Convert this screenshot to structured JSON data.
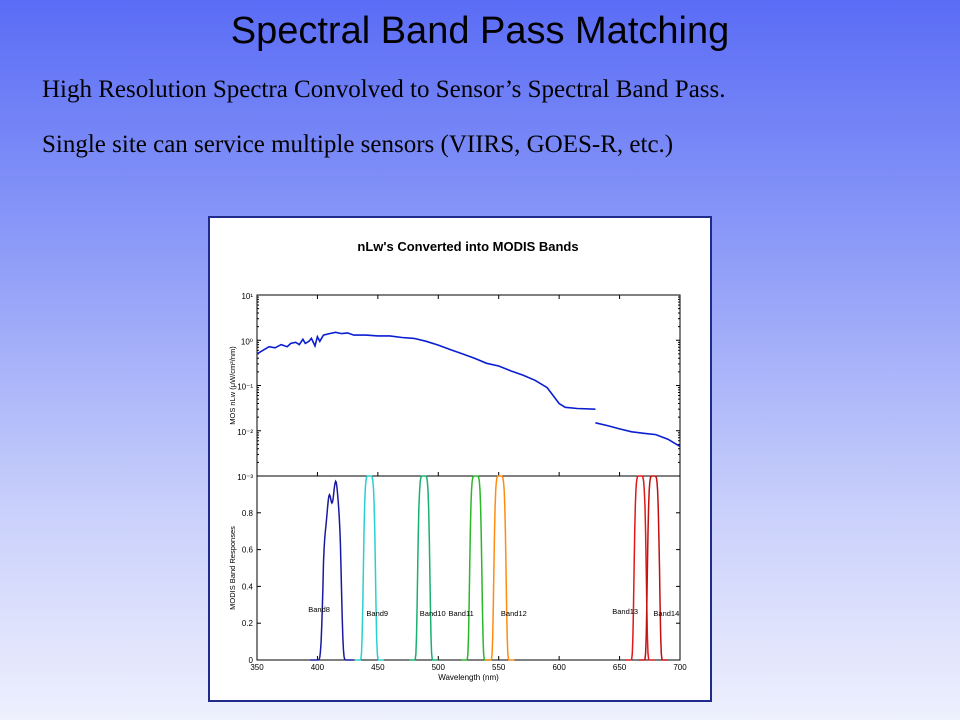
{
  "slide": {
    "title": "Spectral Band Pass Matching",
    "bullets": [
      "High Resolution Spectra Convolved to Sensor’s Spectral Band Pass.",
      "Single site can service multiple sensors  (VIIRS, GOES-R, etc.)"
    ]
  },
  "chart_data": [
    {
      "type": "line",
      "title": "nLw's Converted into MODIS Bands",
      "ylabel": "MOS nLw (μW/cm²/nm)",
      "xlim": [
        350,
        700
      ],
      "yscale": "log",
      "ylim": [
        0.001,
        10
      ],
      "ytick_labels": [
        "10⁻³",
        "10⁻²",
        "10⁻¹",
        "10⁰",
        "10¹"
      ],
      "series": [
        {
          "color": "#0a1ed0",
          "segments": [
            [
              [
                350,
                0.5
              ],
              [
                355,
                0.6
              ],
              [
                360,
                0.72
              ],
              [
                365,
                0.68
              ],
              [
                370,
                0.8
              ],
              [
                375,
                0.72
              ],
              [
                378,
                0.85
              ],
              [
                382,
                0.9
              ],
              [
                385,
                0.8
              ],
              [
                388,
                1.05
              ],
              [
                390,
                0.85
              ],
              [
                393,
                0.95
              ],
              [
                395,
                1.1
              ],
              [
                398,
                0.75
              ],
              [
                400,
                1.2
              ],
              [
                402,
                0.95
              ],
              [
                405,
                1.3
              ],
              [
                410,
                1.4
              ],
              [
                415,
                1.5
              ],
              [
                420,
                1.4
              ],
              [
                425,
                1.45
              ],
              [
                430,
                1.3
              ],
              [
                440,
                1.3
              ],
              [
                450,
                1.25
              ],
              [
                460,
                1.25
              ],
              [
                470,
                1.15
              ],
              [
                480,
                1.1
              ],
              [
                490,
                0.95
              ],
              [
                500,
                0.78
              ],
              [
                510,
                0.62
              ],
              [
                520,
                0.5
              ],
              [
                530,
                0.4
              ],
              [
                540,
                0.31
              ],
              [
                550,
                0.27
              ],
              [
                560,
                0.21
              ],
              [
                570,
                0.17
              ],
              [
                580,
                0.13
              ],
              [
                590,
                0.09
              ],
              [
                595,
                0.06
              ],
              [
                600,
                0.04
              ],
              [
                605,
                0.033
              ],
              [
                615,
                0.031
              ],
              [
                630,
                0.03
              ]
            ],
            [
              [
                630,
                0.015
              ],
              [
                640,
                0.013
              ],
              [
                650,
                0.011
              ],
              [
                660,
                0.0095
              ],
              [
                670,
                0.0088
              ],
              [
                680,
                0.0082
              ],
              [
                690,
                0.0065
              ],
              [
                700,
                0.0045
              ]
            ]
          ]
        }
      ]
    },
    {
      "type": "line",
      "xlabel": "Wavelength  (nm)",
      "ylabel": "MODIS Band Responses",
      "xlim": [
        350,
        700
      ],
      "ylim": [
        0,
        1
      ],
      "xticks": [
        350,
        400,
        450,
        500,
        550,
        600,
        650,
        700
      ],
      "yticks": [
        0,
        0.2,
        0.4,
        0.6,
        0.8
      ],
      "bands": [
        {
          "name": "Band8",
          "center": 412,
          "width": 15,
          "color": "#1a1aa0"
        },
        {
          "name": "Band9",
          "center": 443,
          "width": 10,
          "color": "#2ad0d0"
        },
        {
          "name": "Band10",
          "center": 488,
          "width": 10,
          "color": "#1ab070"
        },
        {
          "name": "Band11",
          "center": 531,
          "width": 10,
          "color": "#2ab82a"
        },
        {
          "name": "Band12",
          "center": 551,
          "width": 10,
          "color": "#ff8c10"
        },
        {
          "name": "Band13",
          "center": 667,
          "width": 10,
          "color": "#e01818"
        },
        {
          "name": "Band14",
          "center": 678,
          "width": 10,
          "color": "#c01010"
        }
      ]
    }
  ]
}
